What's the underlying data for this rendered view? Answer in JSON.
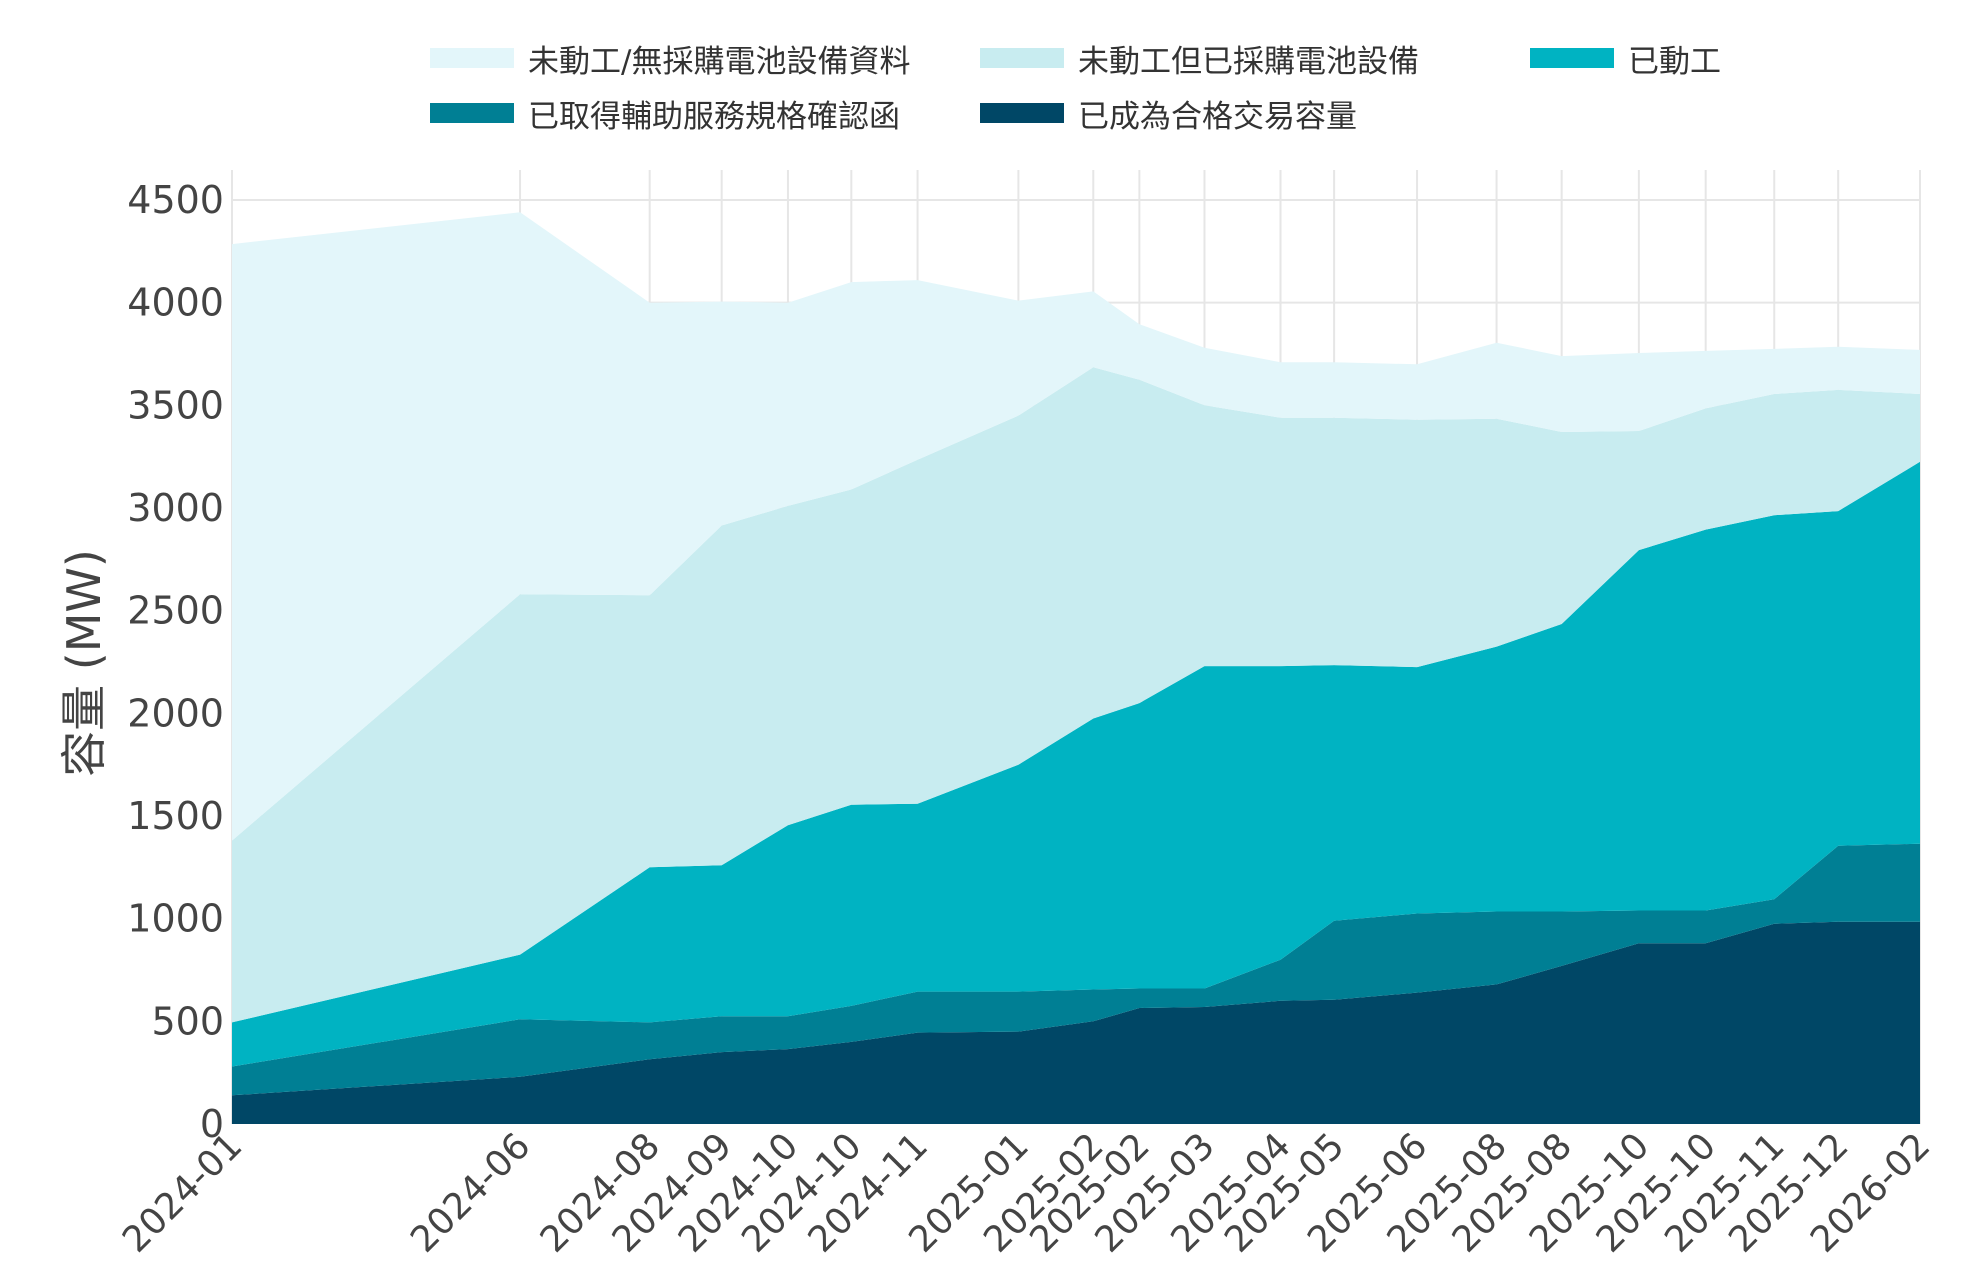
{
  "chart_data": {
    "type": "area",
    "stacked": true,
    "ylabel": "容量 (MW)",
    "xlabel": "",
    "ylim": [
      0,
      4500
    ],
    "yticks": [
      0,
      500,
      1000,
      1500,
      2000,
      2500,
      3000,
      3500,
      4000,
      4500
    ],
    "grid": true,
    "legend_position": "top",
    "x_labels": [
      "2024-01",
      "2024-06",
      "2024-08",
      "2024-09",
      "2024-10",
      "2024-10",
      "2024-11",
      "2025-01",
      "2025-02",
      "2025-02",
      "2025-03",
      "2025-04",
      "2025-05",
      "2025-06",
      "2025-08",
      "2025-08",
      "2025-10",
      "2025-10",
      "2025-11",
      "2025-12",
      "2026-02"
    ],
    "x_positions": [
      0.0,
      5.0,
      7.25,
      8.5,
      9.65,
      10.75,
      11.9,
      13.65,
      14.95,
      15.75,
      16.88,
      18.2,
      19.13,
      20.57,
      21.95,
      23.08,
      24.42,
      25.58,
      26.77,
      27.88,
      29.3
    ],
    "series": [
      {
        "name": "已成為合格交易容量",
        "color": "#004766",
        "values": [
          140,
          230,
          315,
          350,
          365,
          400,
          445,
          450,
          500,
          565,
          570,
          600,
          605,
          640,
          680,
          770,
          880,
          880,
          975,
          985,
          985
        ]
      },
      {
        "name": "已取得輔助服務規格確認函",
        "color": "#007f94",
        "values": [
          140,
          280,
          180,
          175,
          160,
          175,
          200,
          195,
          155,
          95,
          90,
          200,
          385,
          385,
          355,
          265,
          160,
          160,
          120,
          370,
          380
        ]
      },
      {
        "name": "已動工",
        "color": "#00b3c2",
        "values": [
          215,
          315,
          755,
          735,
          930,
          980,
          915,
          1105,
          1320,
          1390,
          1570,
          1430,
          1245,
          1200,
          1290,
          1400,
          1755,
          1855,
          1870,
          1630,
          1860
        ]
      },
      {
        "name": "未動工但已採購電池設備",
        "color": "#c8ecf0",
        "values": [
          885,
          1755,
          1325,
          1655,
          1555,
          1535,
          1675,
          1700,
          1710,
          1575,
          1270,
          1210,
          1205,
          1205,
          1110,
          935,
          580,
          590,
          590,
          590,
          330
        ]
      },
      {
        "name": "未動工/無採購電池設備資料",
        "color": "#e3f6fa",
        "values": [
          2905,
          1860,
          1425,
          1090,
          990,
          1010,
          875,
          560,
          370,
          270,
          280,
          270,
          270,
          270,
          370,
          370,
          380,
          280,
          220,
          210,
          215
        ]
      }
    ]
  },
  "legend": {
    "items": [
      {
        "label": "未動工/無採購電池設備資料",
        "color": "#e3f6fa"
      },
      {
        "label": "未動工但已採購電池設備",
        "color": "#c8ecf0"
      },
      {
        "label": "已動工",
        "color": "#00b3c2"
      },
      {
        "label": "已取得輔助服務規格確認函",
        "color": "#007f94"
      },
      {
        "label": "已成為合格交易容量",
        "color": "#004766"
      }
    ]
  }
}
